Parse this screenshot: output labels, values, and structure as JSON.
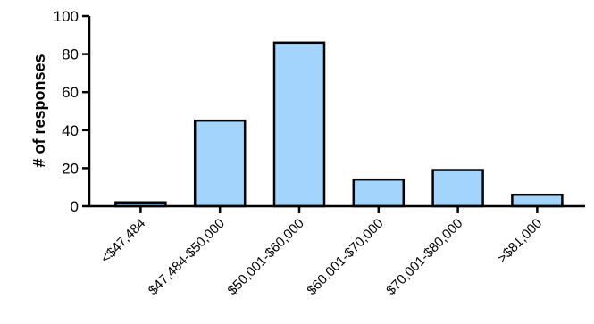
{
  "chart_data": {
    "type": "bar",
    "title": "",
    "xlabel": "",
    "ylabel": "# of responses",
    "categories": [
      "<$47,484",
      "$47,484-$50,000",
      "$50,001-$60,000",
      "$60,001-$70,000",
      "$70,001-$80,000",
      ">$81,000"
    ],
    "values": [
      2,
      45,
      86,
      14,
      19,
      6
    ],
    "ylim": [
      0,
      100
    ],
    "yticks": [
      "0",
      "20",
      "40",
      "60",
      "80",
      "100"
    ],
    "grid": false,
    "bar_color": "#a3d4fb",
    "bar_edge_color": "#000000"
  }
}
